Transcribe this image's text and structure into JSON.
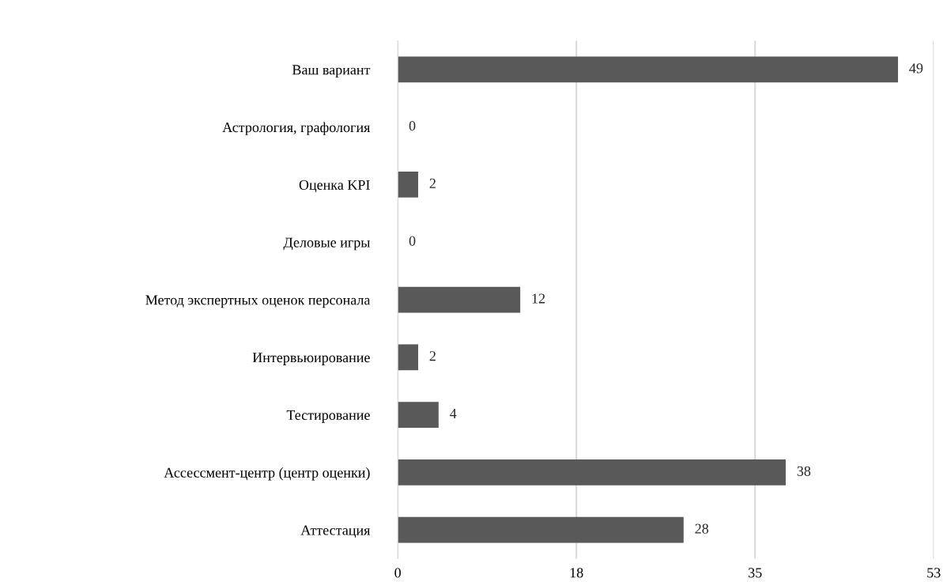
{
  "chart_data": {
    "type": "bar",
    "orientation": "horizontal",
    "categories": [
      "Ваш вариант",
      "Астрология, графология",
      "Оценка KPI",
      "Деловые игры",
      "Метод экспертных оценок персонала",
      "Интервьюирование",
      "Тестирование",
      "Ассессмент-центр (центр оценки)",
      "Аттестация"
    ],
    "values": [
      49,
      0,
      2,
      0,
      12,
      2,
      4,
      38,
      28
    ],
    "color": "#595959",
    "xlim": [
      0,
      52.5
    ],
    "xticks": [
      0,
      {
        "value": 17.5,
        "label": "18"
      },
      35,
      {
        "value": 52.5,
        "label": "53"
      }
    ],
    "grid": "x",
    "data_labels": true
  }
}
